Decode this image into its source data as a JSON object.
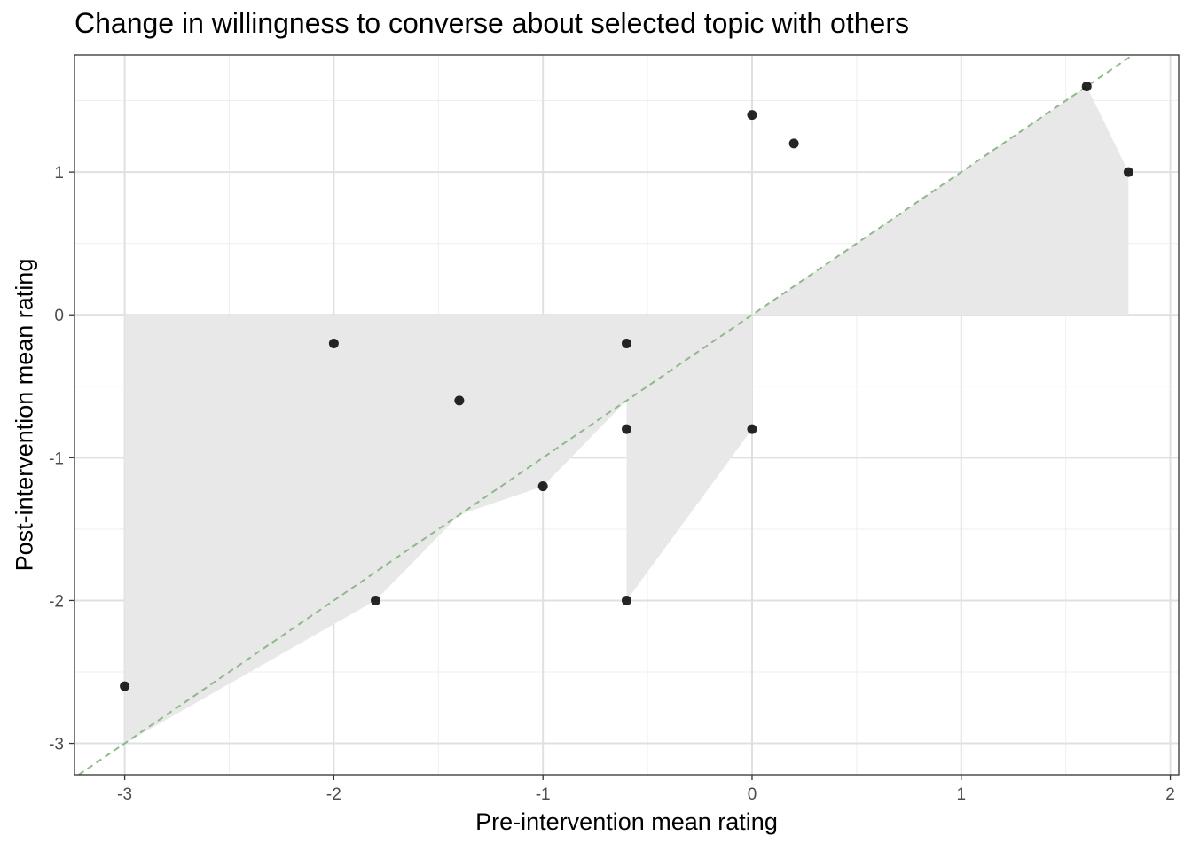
{
  "chart_data": {
    "type": "scatter",
    "title": "Change in willingness to converse about selected topic with others",
    "xlabel": "Pre-intervention mean rating",
    "ylabel": "Post-intervention mean rating",
    "xlim": [
      -3.24,
      2.04
    ],
    "ylim": [
      -3.22,
      1.82
    ],
    "x_ticks": [
      -3,
      -2,
      -1,
      0,
      1,
      2
    ],
    "y_ticks": [
      -3,
      -2,
      -1,
      0,
      1
    ],
    "x_tick_labels": [
      "-3",
      "-2",
      "-1",
      "0",
      "1",
      "2"
    ],
    "y_tick_labels": [
      "-3",
      "-2",
      "-1",
      "0",
      "1"
    ],
    "grid": true,
    "points": [
      {
        "x": -3.0,
        "y": -2.6
      },
      {
        "x": -2.0,
        "y": -0.2
      },
      {
        "x": -1.8,
        "y": -2.0
      },
      {
        "x": -1.4,
        "y": -0.6
      },
      {
        "x": -1.0,
        "y": -1.2
      },
      {
        "x": -0.6,
        "y": -0.2
      },
      {
        "x": -0.6,
        "y": -0.8
      },
      {
        "x": -0.6,
        "y": -2.0
      },
      {
        "x": 0.0,
        "y": 1.4
      },
      {
        "x": 0.0,
        "y": -0.8
      },
      {
        "x": 0.2,
        "y": 1.2
      },
      {
        "x": 1.6,
        "y": 1.6
      },
      {
        "x": 1.8,
        "y": 1.0
      }
    ],
    "reference_line": {
      "type": "y = x",
      "style": "dashed",
      "color": "#8fb98a"
    },
    "ribbon": {
      "color": "#e8e8e8",
      "polygon": [
        [
          -3.0,
          -3.0
        ],
        [
          -1.8,
          -2.0
        ],
        [
          -1.4,
          -1.4
        ],
        [
          -1.0,
          -1.2
        ],
        [
          -0.6,
          -0.6
        ],
        [
          -0.6,
          -2.0
        ],
        [
          0.0,
          -0.8
        ],
        [
          0.0,
          0.0
        ],
        [
          1.6,
          1.6
        ],
        [
          1.8,
          1.0
        ],
        [
          1.8,
          0.0
        ],
        [
          -3.0,
          0.0
        ]
      ]
    },
    "colors": {
      "points": "#000000",
      "panel_border": "#333333",
      "grid_major": "#e0e0e0",
      "grid_minor": "#efefef"
    }
  }
}
